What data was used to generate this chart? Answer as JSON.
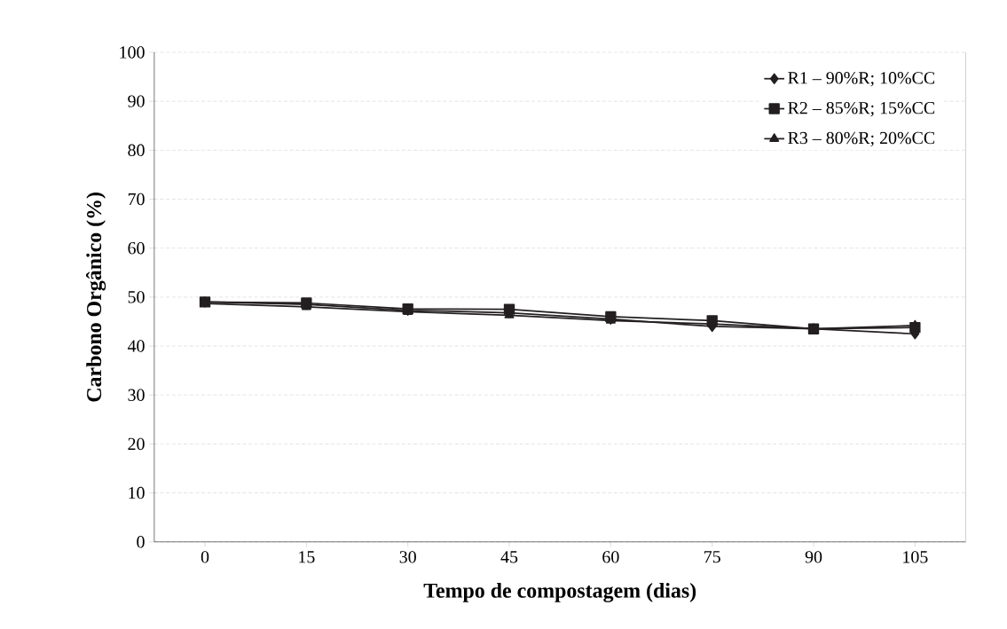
{
  "chart_data": {
    "type": "line",
    "xlabel": "Tempo de compostagem (dias)",
    "ylabel": "Carbono Orgânico (%)",
    "categories": [
      "0",
      "15",
      "30",
      "45",
      "60",
      "75",
      "90",
      "105"
    ],
    "series": [
      {
        "name": "R1 – 90%R; 10%CC",
        "color": "#231f20",
        "marker": "diamond",
        "values": [
          49,
          48.5,
          47.3,
          46.8,
          45.5,
          44,
          43.5,
          42.5
        ]
      },
      {
        "name": "R2 – 85%R; 15%CC",
        "color": "#231f20",
        "marker": "square",
        "values": [
          49,
          48.8,
          47.6,
          47.5,
          46,
          45.2,
          43.5,
          43.8
        ]
      },
      {
        "name": "R3 – 80%R; 20%CC",
        "color": "#231f20",
        "marker": "triangle",
        "values": [
          48.7,
          48,
          47,
          46.3,
          45.2,
          44.5,
          43.5,
          44.2
        ]
      }
    ],
    "ylim": [
      0,
      100
    ],
    "yticks": [
      0,
      10,
      20,
      30,
      40,
      50,
      60,
      70,
      80,
      90,
      100
    ],
    "grid": "y",
    "legend": "top right",
    "line_style": "solid"
  }
}
